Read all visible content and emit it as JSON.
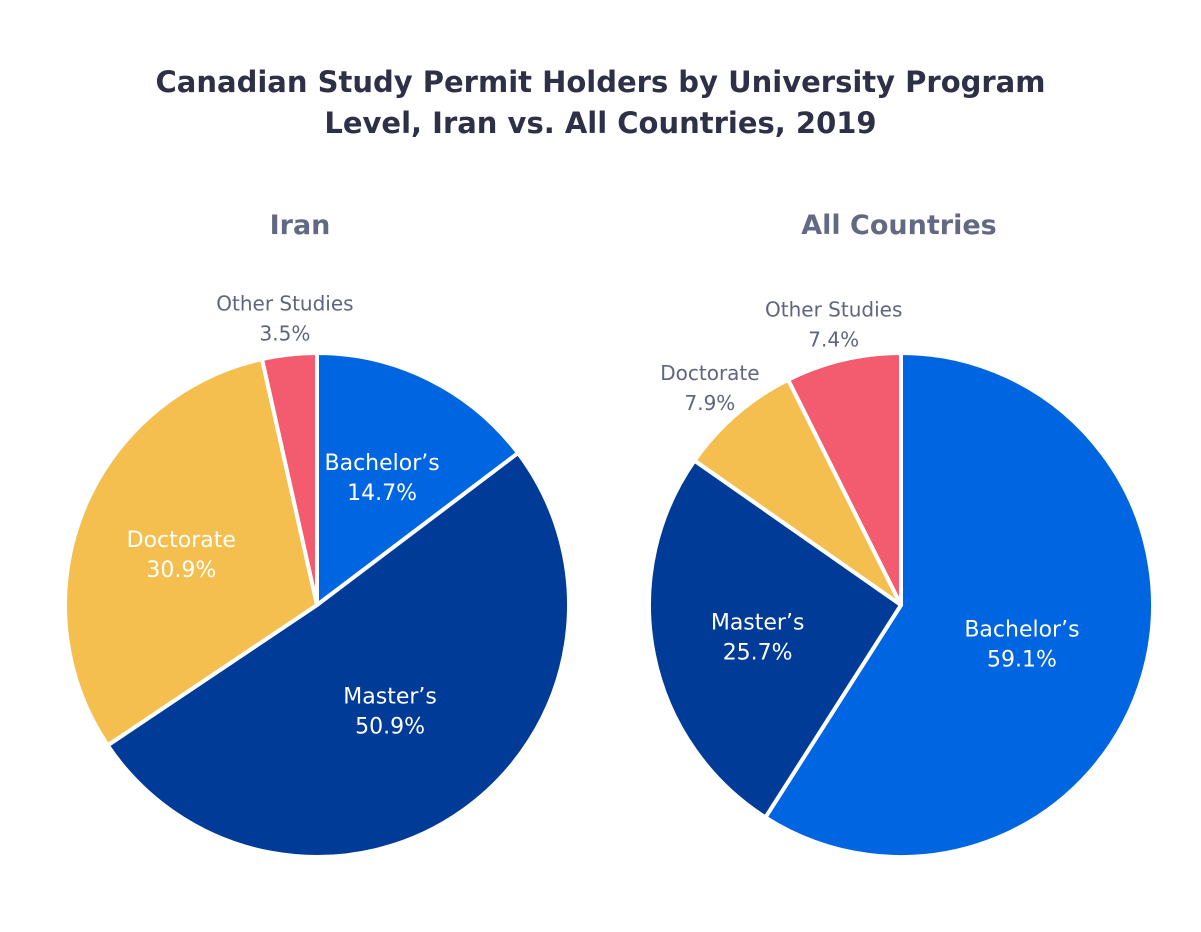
{
  "chart_data": [
    {
      "type": "pie",
      "title": "Iran",
      "categories": [
        "Bachelor’s",
        "Master’s",
        "Doctorate",
        "Other Studies"
      ],
      "values": [
        14.7,
        50.9,
        30.9,
        3.5
      ],
      "labels": [
        "14.7%",
        "50.9%",
        "30.9%",
        "3.5%"
      ],
      "start": "top",
      "direction": "clockwise"
    },
    {
      "type": "pie",
      "title": "All Countries",
      "categories": [
        "Bachelor’s",
        "Master’s",
        "Doctorate",
        "Other Studies"
      ],
      "values": [
        59.1,
        25.7,
        7.9,
        7.4
      ],
      "labels": [
        "59.1%",
        "25.7%",
        "7.9%",
        "7.4%"
      ],
      "start": "top",
      "direction": "clockwise"
    }
  ],
  "title": "Canadian Study Permit Holders by University Program Level, Iran vs. All Countries, 2019",
  "colors": {
    "Bachelor’s": "#0065e0",
    "Master’s": "#003b97",
    "Doctorate": "#f5bf4f",
    "Other Studies": "#f25c6e",
    "inside_label": "#ffffff",
    "outside_label": "#5f6580"
  }
}
